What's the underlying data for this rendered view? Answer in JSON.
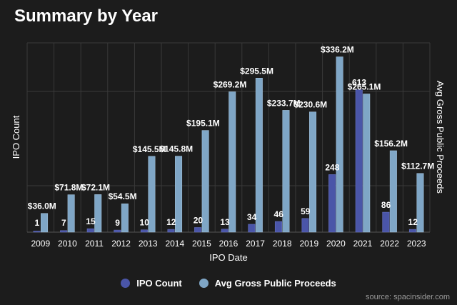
{
  "title": "Summary by Year",
  "source": "source: spacinsider.com",
  "colors": {
    "background": "#1c1c1c",
    "grid": "#3a3a3a",
    "count_bar": "#4a55a8",
    "proceeds_bar": "#7fa6c6"
  },
  "chart_data": {
    "type": "bar",
    "title": "Summary by Year",
    "xlabel": "IPO Date",
    "ylabel": "IPO Count",
    "y2label": "Avg Gross Public Proceeds",
    "categories": [
      "2009",
      "2010",
      "2011",
      "2012",
      "2013",
      "2014",
      "2015",
      "2016",
      "2017",
      "2018",
      "2019",
      "2020",
      "2021",
      "2022",
      "2023"
    ],
    "series": [
      {
        "name": "IPO Count",
        "axis": "left",
        "values": [
          1,
          7,
          15,
          9,
          10,
          12,
          20,
          13,
          34,
          46,
          59,
          248,
          613,
          86,
          12
        ],
        "labels": [
          "1",
          "7",
          "15",
          "9",
          "10",
          "12",
          "20",
          "13",
          "34",
          "46",
          "59",
          "248",
          "613",
          "86",
          "12"
        ]
      },
      {
        "name": "Avg Gross Public Proceeds",
        "axis": "right",
        "values": [
          36.0,
          71.8,
          72.1,
          54.5,
          145.5,
          145.8,
          195.1,
          269.2,
          295.5,
          233.7,
          230.6,
          336.2,
          265.1,
          156.2,
          112.7
        ],
        "labels": [
          "$36.0M",
          "$71.8M",
          "$72.1M",
          "$54.5M",
          "$145.5M",
          "$145.8M",
          "$195.1M",
          "$269.2M",
          "$295.5M",
          "$233.7M",
          "$230.6M",
          "$336.2M",
          "$265.1M",
          "$156.2M",
          "$112.7M"
        ]
      }
    ],
    "ylim": [
      0,
      815
    ],
    "y2lim": [
      0,
      363
    ],
    "grid": true,
    "legend": "bottom-center"
  }
}
